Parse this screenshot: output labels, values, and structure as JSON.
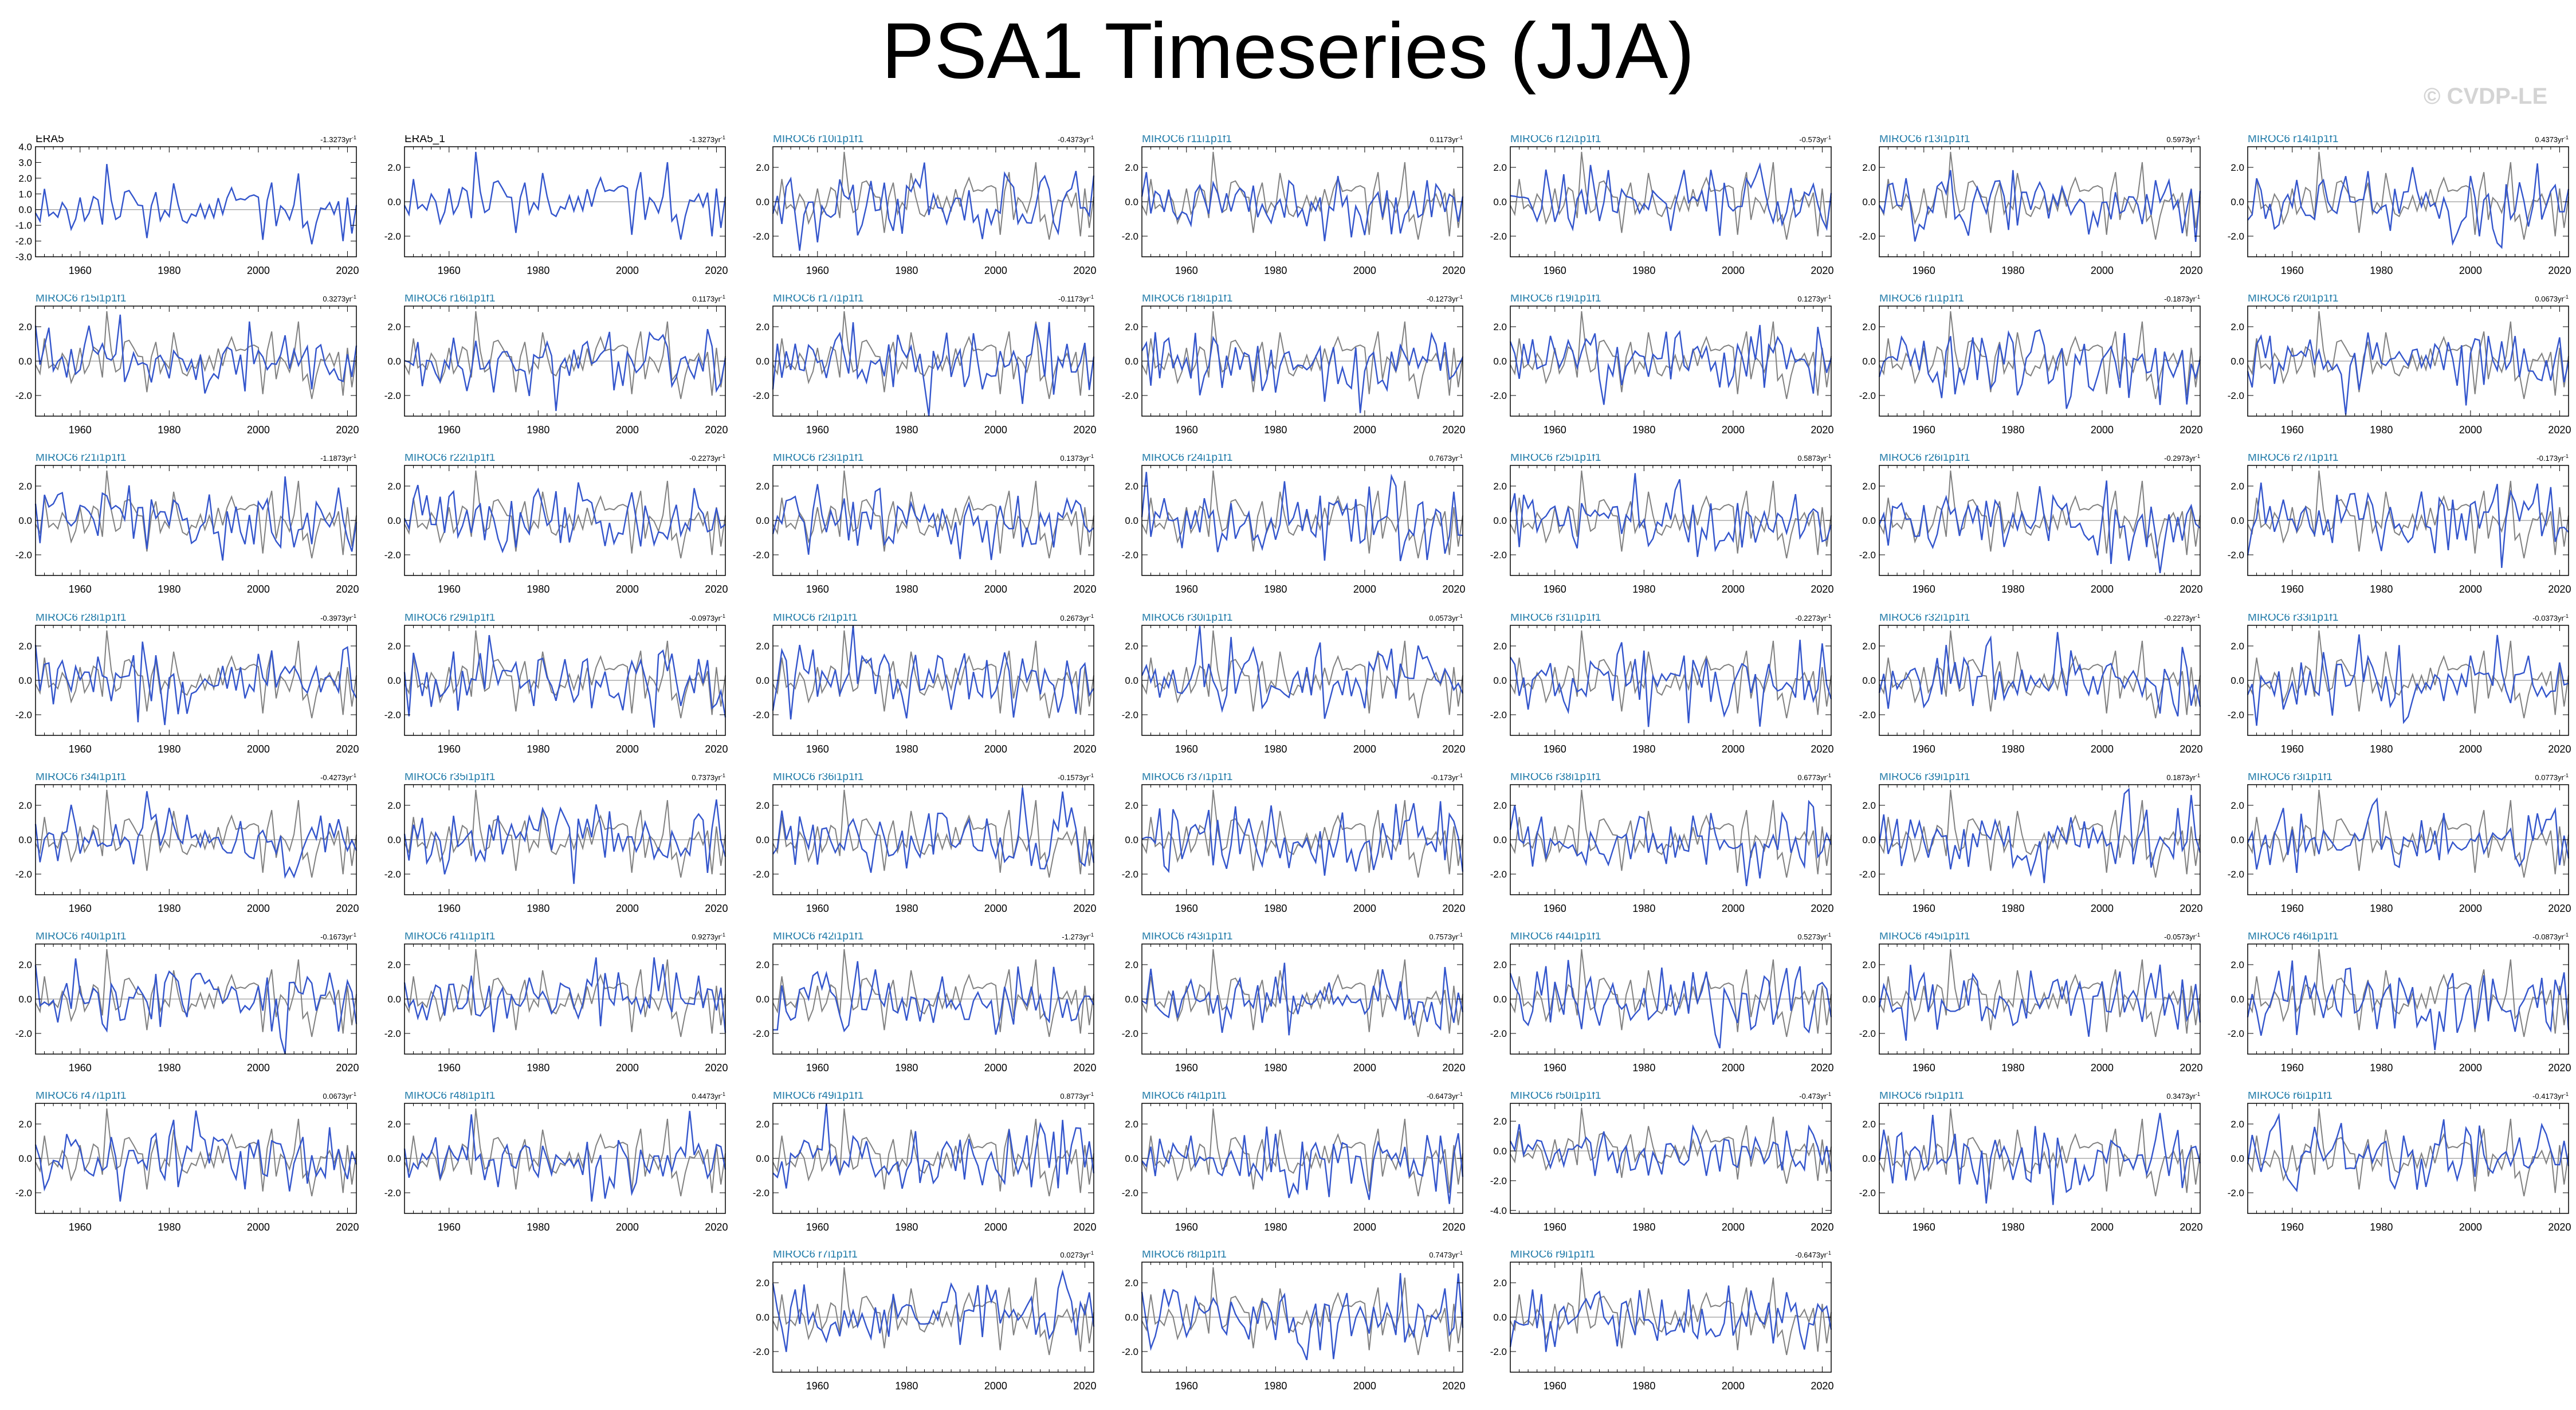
{
  "title": "PSA1 Timeseries (JJA)",
  "watermark": "© CVDP-LE",
  "colors": {
    "model": "#3355cc",
    "observation": "#808080",
    "model_label": "#1f7aa8",
    "obs_label": "#000000",
    "frame": "#000000",
    "zero_line": "#9a9a9a"
  },
  "axes": {
    "x_range": [
      1950,
      2022
    ],
    "x_ticks": [
      1960,
      1980,
      2000,
      2020
    ],
    "x_tick_labels": [
      "1960",
      "1980",
      "2000",
      "2020"
    ],
    "y_range": [
      -3.2,
      3.2
    ],
    "y_ticks": [
      -2.0,
      0.0,
      2.0
    ],
    "y_tick_labels": [
      "-2.0",
      "0.0",
      "2.0"
    ]
  },
  "chart_data": [
    {
      "type": "line",
      "label": "ERA5",
      "trend": "-1.32",
      "trend_unit": "73yr",
      "trend_exp": "-1",
      "is_obs": true,
      "ylim": [
        -3.0,
        4.0
      ],
      "y_ticks": [
        -3,
        -2,
        -1,
        0,
        1,
        2,
        3,
        4
      ],
      "y_tick_labels": [
        "-3.0",
        "-2.0",
        "-1.0",
        "0.0",
        "1.0",
        "2.0",
        "3.0",
        "4.0"
      ]
    },
    {
      "type": "line",
      "label": "ERA5_1",
      "trend": "-1.32",
      "trend_unit": "73yr",
      "trend_exp": "-1",
      "is_obs": true
    },
    {
      "type": "line",
      "label": "MIROC6 r10i1p1f1",
      "trend": "-0.43",
      "trend_unit": "73yr",
      "trend_exp": "-1"
    },
    {
      "type": "line",
      "label": "MIROC6 r11i1p1f1",
      "trend": "0.11",
      "trend_unit": "73yr",
      "trend_exp": "-1"
    },
    {
      "type": "line",
      "label": "MIROC6 r12i1p1f1",
      "trend": "-0.5",
      "trend_unit": "73yr",
      "trend_exp": "-1"
    },
    {
      "type": "line",
      "label": "MIROC6 r13i1p1f1",
      "trend": "0.59",
      "trend_unit": "73yr",
      "trend_exp": "-1"
    },
    {
      "type": "line",
      "label": "MIROC6 r14i1p1f1",
      "trend": "0.43",
      "trend_unit": "73yr",
      "trend_exp": "-1"
    },
    {
      "type": "line",
      "label": "MIROC6 r15i1p1f1",
      "trend": "0.32",
      "trend_unit": "73yr",
      "trend_exp": "-1"
    },
    {
      "type": "line",
      "label": "MIROC6 r16i1p1f1",
      "trend": "0.11",
      "trend_unit": "73yr",
      "trend_exp": "-1"
    },
    {
      "type": "line",
      "label": "MIROC6 r17i1p1f1",
      "trend": "-0.11",
      "trend_unit": "73yr",
      "trend_exp": "-1"
    },
    {
      "type": "line",
      "label": "MIROC6 r18i1p1f1",
      "trend": "-0.12",
      "trend_unit": "73yr",
      "trend_exp": "-1"
    },
    {
      "type": "line",
      "label": "MIROC6 r19i1p1f1",
      "trend": "0.12",
      "trend_unit": "73yr",
      "trend_exp": "-1"
    },
    {
      "type": "line",
      "label": "MIROC6 r1i1p1f1",
      "trend": "-0.18",
      "trend_unit": "73yr",
      "trend_exp": "-1"
    },
    {
      "type": "line",
      "label": "MIROC6 r20i1p1f1",
      "trend": "0.06",
      "trend_unit": "73yr",
      "trend_exp": "-1"
    },
    {
      "type": "line",
      "label": "MIROC6 r21i1p1f1",
      "trend": "-1.18",
      "trend_unit": "73yr",
      "trend_exp": "-1"
    },
    {
      "type": "line",
      "label": "MIROC6 r22i1p1f1",
      "trend": "-0.22",
      "trend_unit": "73yr",
      "trend_exp": "-1"
    },
    {
      "type": "line",
      "label": "MIROC6 r23i1p1f1",
      "trend": "0.13",
      "trend_unit": "73yr",
      "trend_exp": "-1"
    },
    {
      "type": "line",
      "label": "MIROC6 r24i1p1f1",
      "trend": "0.76",
      "trend_unit": "73yr",
      "trend_exp": "-1"
    },
    {
      "type": "line",
      "label": "MIROC6 r25i1p1f1",
      "trend": "0.58",
      "trend_unit": "73yr",
      "trend_exp": "-1"
    },
    {
      "type": "line",
      "label": "MIROC6 r26i1p1f1",
      "trend": "-0.29",
      "trend_unit": "73yr",
      "trend_exp": "-1"
    },
    {
      "type": "line",
      "label": "MIROC6 r27i1p1f1",
      "trend": "-0.1",
      "trend_unit": "73yr",
      "trend_exp": "-1"
    },
    {
      "type": "line",
      "label": "MIROC6 r28i1p1f1",
      "trend": "-0.39",
      "trend_unit": "73yr",
      "trend_exp": "-1"
    },
    {
      "type": "line",
      "label": "MIROC6 r29i1p1f1",
      "trend": "-0.09",
      "trend_unit": "73yr",
      "trend_exp": "-1"
    },
    {
      "type": "line",
      "label": "MIROC6 r2i1p1f1",
      "trend": "0.26",
      "trend_unit": "73yr",
      "trend_exp": "-1"
    },
    {
      "type": "line",
      "label": "MIROC6 r30i1p1f1",
      "trend": "0.05",
      "trend_unit": "73yr",
      "trend_exp": "-1"
    },
    {
      "type": "line",
      "label": "MIROC6 r31i1p1f1",
      "trend": "-0.22",
      "trend_unit": "73yr",
      "trend_exp": "-1"
    },
    {
      "type": "line",
      "label": "MIROC6 r32i1p1f1",
      "trend": "-0.22",
      "trend_unit": "73yr",
      "trend_exp": "-1"
    },
    {
      "type": "line",
      "label": "MIROC6 r33i1p1f1",
      "trend": "-0.03",
      "trend_unit": "73yr",
      "trend_exp": "-1"
    },
    {
      "type": "line",
      "label": "MIROC6 r34i1p1f1",
      "trend": "-0.42",
      "trend_unit": "73yr",
      "trend_exp": "-1"
    },
    {
      "type": "line",
      "label": "MIROC6 r35i1p1f1",
      "trend": "0.73",
      "trend_unit": "73yr",
      "trend_exp": "-1"
    },
    {
      "type": "line",
      "label": "MIROC6 r36i1p1f1",
      "trend": "-0.15",
      "trend_unit": "73yr",
      "trend_exp": "-1"
    },
    {
      "type": "line",
      "label": "MIROC6 r37i1p1f1",
      "trend": "-0.1",
      "trend_unit": "73yr",
      "trend_exp": "-1"
    },
    {
      "type": "line",
      "label": "MIROC6 r38i1p1f1",
      "trend": "0.67",
      "trend_unit": "73yr",
      "trend_exp": "-1"
    },
    {
      "type": "line",
      "label": "MIROC6 r39i1p1f1",
      "trend": "0.18",
      "trend_unit": "73yr",
      "trend_exp": "-1"
    },
    {
      "type": "line",
      "label": "MIROC6 r3i1p1f1",
      "trend": "0.07",
      "trend_unit": "73yr",
      "trend_exp": "-1"
    },
    {
      "type": "line",
      "label": "MIROC6 r40i1p1f1",
      "trend": "-0.16",
      "trend_unit": "73yr",
      "trend_exp": "-1"
    },
    {
      "type": "line",
      "label": "MIROC6 r41i1p1f1",
      "trend": "0.92",
      "trend_unit": "73yr",
      "trend_exp": "-1"
    },
    {
      "type": "line",
      "label": "MIROC6 r42i1p1f1",
      "trend": "-1.2",
      "trend_unit": "73yr",
      "trend_exp": "-1"
    },
    {
      "type": "line",
      "label": "MIROC6 r43i1p1f1",
      "trend": "0.75",
      "trend_unit": "73yr",
      "trend_exp": "-1"
    },
    {
      "type": "line",
      "label": "MIROC6 r44i1p1f1",
      "trend": "0.52",
      "trend_unit": "73yr",
      "trend_exp": "-1"
    },
    {
      "type": "line",
      "label": "MIROC6 r45i1p1f1",
      "trend": "-0.05",
      "trend_unit": "73yr",
      "trend_exp": "-1"
    },
    {
      "type": "line",
      "label": "MIROC6 r46i1p1f1",
      "trend": "-0.08",
      "trend_unit": "73yr",
      "trend_exp": "-1"
    },
    {
      "type": "line",
      "label": "MIROC6 r47i1p1f1",
      "trend": "0.06",
      "trend_unit": "73yr",
      "trend_exp": "-1"
    },
    {
      "type": "line",
      "label": "MIROC6 r48i1p1f1",
      "trend": "0.44",
      "trend_unit": "73yr",
      "trend_exp": "-1"
    },
    {
      "type": "line",
      "label": "MIROC6 r49i1p1f1",
      "trend": "0.87",
      "trend_unit": "73yr",
      "trend_exp": "-1"
    },
    {
      "type": "line",
      "label": "MIROC6 r4i1p1f1",
      "trend": "-0.64",
      "trend_unit": "73yr",
      "trend_exp": "-1"
    },
    {
      "type": "line",
      "label": "MIROC6 r50i1p1f1",
      "trend": "-0.4",
      "trend_unit": "73yr",
      "trend_exp": "-1",
      "ylim": [
        -4.2,
        3.2
      ],
      "y_ticks": [
        -4,
        -2,
        0,
        2
      ],
      "y_tick_labels": [
        "-4.0",
        "-2.0",
        "0.0",
        "2.0"
      ]
    },
    {
      "type": "line",
      "label": "MIROC6 r5i1p1f1",
      "trend": "0.34",
      "trend_unit": "73yr",
      "trend_exp": "-1"
    },
    {
      "type": "line",
      "label": "MIROC6 r6i1p1f1",
      "trend": "-0.41",
      "trend_unit": "73yr",
      "trend_exp": "-1"
    },
    {
      "type": "line",
      "label": "MIROC6 r7i1p1f1",
      "trend": "0.02",
      "trend_unit": "73yr",
      "trend_exp": "-1"
    },
    {
      "type": "line",
      "label": "MIROC6 r8i1p1f1",
      "trend": "0.74",
      "trend_unit": "73yr",
      "trend_exp": "-1"
    },
    {
      "type": "line",
      "label": "MIROC6 r9i1p1f1",
      "trend": "-0.64",
      "trend_unit": "73yr",
      "trend_exp": "-1"
    }
  ]
}
